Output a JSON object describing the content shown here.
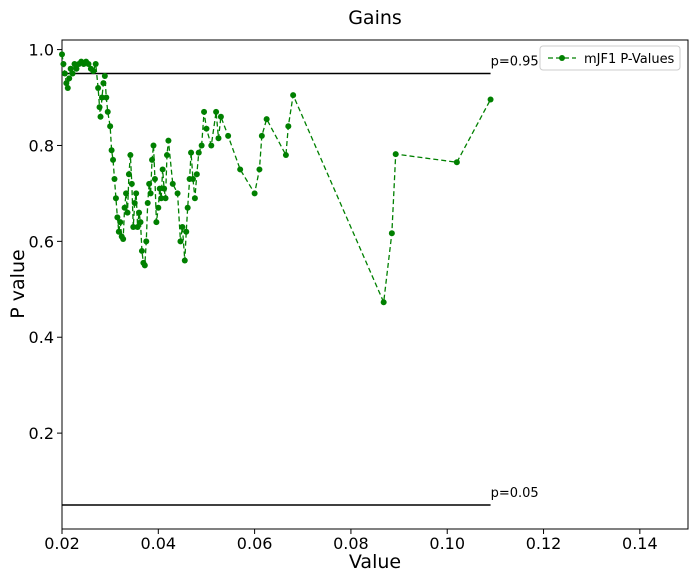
{
  "chart_data": {
    "type": "line",
    "title": "Gains",
    "xlabel": "Value",
    "ylabel": "P value",
    "xlim": [
      0.02,
      0.15
    ],
    "ylim": [
      0,
      1.02
    ],
    "xticks": [
      0.02,
      0.04,
      0.06,
      0.08,
      {
        "value": 0.1,
        "label": "0.10"
      },
      0.12,
      0.14
    ],
    "yticks": [
      0.2,
      0.4,
      0.6,
      0.8,
      {
        "value": 1.0,
        "label": "1.0"
      }
    ],
    "legend": "upper right",
    "x": [
      0.02,
      0.0203,
      0.0206,
      0.0209,
      0.0212,
      0.0215,
      0.0218,
      0.0222,
      0.0226,
      0.023,
      0.0235,
      0.024,
      0.0245,
      0.025,
      0.0255,
      0.026,
      0.0265,
      0.027,
      0.0275,
      0.0278,
      0.028,
      0.0283,
      0.0286,
      0.0289,
      0.0292,
      0.0295,
      0.03,
      0.0303,
      0.0306,
      0.0309,
      0.0312,
      0.0315,
      0.0318,
      0.0321,
      0.0324,
      0.0327,
      0.033,
      0.0333,
      0.0336,
      0.0339,
      0.0342,
      0.0345,
      0.0348,
      0.0351,
      0.0354,
      0.0357,
      0.036,
      0.0363,
      0.0366,
      0.0369,
      0.0372,
      0.0375,
      0.0378,
      0.0381,
      0.0384,
      0.0387,
      0.039,
      0.0393,
      0.0396,
      0.04,
      0.0403,
      0.0406,
      0.0409,
      0.0412,
      0.0415,
      0.0418,
      0.0421,
      0.043,
      0.044,
      0.0446,
      0.045,
      0.0455,
      0.0458,
      0.0461,
      0.0465,
      0.0468,
      0.0472,
      0.0476,
      0.048,
      0.0484,
      0.049,
      0.0495,
      0.05,
      0.051,
      0.052,
      0.0525,
      0.053,
      0.0545,
      0.057,
      0.06,
      0.061,
      0.0615,
      0.0625,
      0.0665,
      0.067,
      0.068,
      0.0868,
      0.0885,
      0.0893,
      0.102,
      0.109
    ],
    "series": [
      {
        "name": "mJF1 P-Values",
        "color": "#008000",
        "values": [
          0.99,
          0.97,
          0.95,
          0.93,
          0.92,
          0.94,
          0.96,
          0.95,
          0.97,
          0.96,
          0.97,
          0.975,
          0.97,
          0.975,
          0.97,
          0.96,
          0.955,
          0.97,
          0.92,
          0.88,
          0.86,
          0.9,
          0.93,
          0.945,
          0.9,
          0.87,
          0.84,
          0.79,
          0.77,
          0.73,
          0.69,
          0.65,
          0.62,
          0.64,
          0.61,
          0.605,
          0.67,
          0.7,
          0.66,
          0.74,
          0.78,
          0.72,
          0.63,
          0.68,
          0.7,
          0.63,
          0.66,
          0.64,
          0.58,
          0.555,
          0.55,
          0.6,
          0.68,
          0.72,
          0.7,
          0.77,
          0.8,
          0.73,
          0.64,
          0.67,
          0.71,
          0.69,
          0.75,
          0.71,
          0.69,
          0.78,
          0.81,
          0.72,
          0.7,
          0.6,
          0.63,
          0.56,
          0.62,
          0.67,
          0.73,
          0.785,
          0.73,
          0.69,
          0.74,
          0.785,
          0.8,
          0.87,
          0.835,
          0.8,
          0.87,
          0.815,
          0.86,
          0.82,
          0.75,
          0.7,
          0.75,
          0.82,
          0.855,
          0.78,
          0.84,
          0.905,
          0.473,
          0.617,
          0.782,
          0.765,
          0.896
        ]
      }
    ],
    "hlines": [
      {
        "y": 0.95,
        "x": [
          0.02,
          0.109
        ],
        "label": "p=0.95"
      },
      {
        "y": 0.05,
        "x": [
          0.02,
          0.109
        ],
        "label": "p=0.05"
      }
    ]
  }
}
